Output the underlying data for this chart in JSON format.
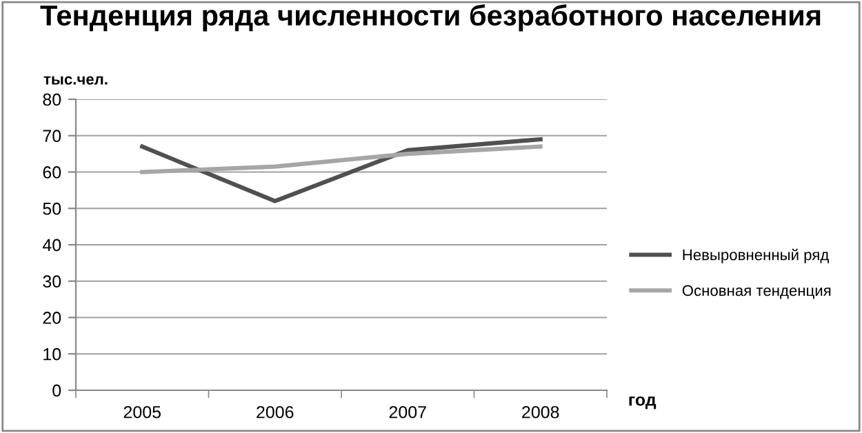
{
  "chart_data": {
    "type": "line",
    "title": "Тенденция ряда численности безработного населения",
    "ylabel": "тыс.чел.",
    "xlabel": "год",
    "categories": [
      "2005",
      "2006",
      "2007",
      "2008"
    ],
    "series": [
      {
        "name": "Невыровненный ряд",
        "color": "#505050",
        "values": [
          67,
          52,
          66,
          69
        ]
      },
      {
        "name": "Основная тенденция",
        "color": "#a6a6a6",
        "values": [
          60,
          61.5,
          65,
          67
        ]
      }
    ],
    "ylim": [
      0,
      80
    ],
    "yticks": [
      0,
      10,
      20,
      30,
      40,
      50,
      60,
      70,
      80
    ],
    "grid": "y",
    "legend": "right",
    "marker": "none",
    "line_style": "solid"
  }
}
